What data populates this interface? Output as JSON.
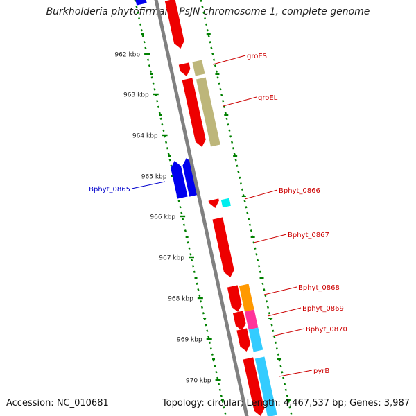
{
  "title": "Burkholderia phytofirmans PsJN chromosome 1, complete genome",
  "footer": {
    "accession": "Accession: NC_010681",
    "topology": "Topology: circular; Length: 4,467,537 bp; Genes: 3,987"
  },
  "colors": {
    "backbone": "#808080",
    "tick": "#008000",
    "forward_gene": "#ee0000",
    "reverse_gene": "#0000ee",
    "groEL_feature": "#bdb67a",
    "Bphyt_0866_feature": "#00eeee",
    "Bphyt_0868_feature": "#ff9900",
    "Bphyt_0869_feature": "#ff3399",
    "Bphyt_0870_feature": "#33ccff",
    "pyrB_feature": "#33ccff"
  },
  "kbp_ticks": [
    "962 kbp",
    "963 kbp",
    "964 kbp",
    "965 kbp",
    "966 kbp",
    "967 kbp",
    "968 kbp",
    "969 kbp",
    "970 kbp"
  ],
  "gene_labels": [
    {
      "text": "groES",
      "color": "#cc0000"
    },
    {
      "text": "groEL",
      "color": "#cc0000"
    },
    {
      "text": "Bphyt_0866",
      "color": "#cc0000"
    },
    {
      "text": "Bphyt_0867",
      "color": "#cc0000"
    },
    {
      "text": "Bphyt_0868",
      "color": "#cc0000"
    },
    {
      "text": "Bphyt_0869",
      "color": "#cc0000"
    },
    {
      "text": "Bphyt_0870",
      "color": "#cc0000"
    },
    {
      "text": "pyrB",
      "color": "#cc0000"
    },
    {
      "text": "Bphyt_0865",
      "color": "#0000cc"
    }
  ]
}
